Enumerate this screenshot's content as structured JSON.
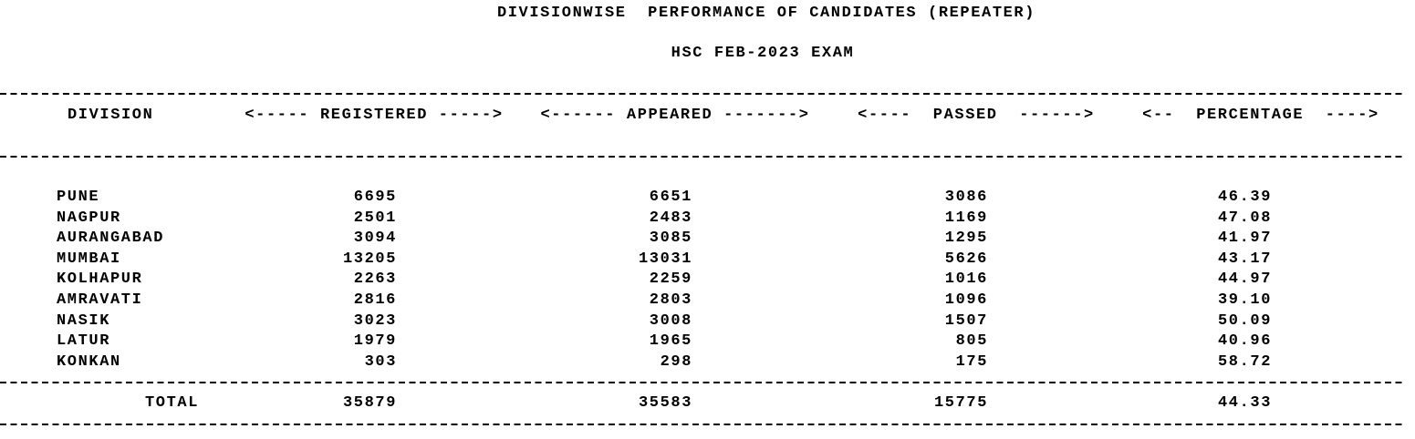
{
  "title": "DIVISIONWISE  PERFORMANCE OF CANDIDATES (REPEATER)",
  "subtitle": "HSC FEB-2023 EXAM",
  "headers": {
    "division": "DIVISION",
    "registered": "<----- REGISTERED ----->",
    "appeared": "<------ APPEARED ------->",
    "passed": "<----  PASSED  ------>",
    "percentage": "<--  PERCENTAGE  ---->"
  },
  "rows": [
    {
      "division": "PUNE",
      "registered": "6695",
      "appeared": "6651",
      "passed": "3086",
      "percentage": "46.39"
    },
    {
      "division": "NAGPUR",
      "registered": "2501",
      "appeared": "2483",
      "passed": "1169",
      "percentage": "47.08"
    },
    {
      "division": "AURANGABAD",
      "registered": "3094",
      "appeared": "3085",
      "passed": "1295",
      "percentage": "41.97"
    },
    {
      "division": "MUMBAI",
      "registered": "13205",
      "appeared": "13031",
      "passed": "5626",
      "percentage": "43.17"
    },
    {
      "division": "KOLHAPUR",
      "registered": "2263",
      "appeared": "2259",
      "passed": "1016",
      "percentage": "44.97"
    },
    {
      "division": "AMRAVATI",
      "registered": "2816",
      "appeared": "2803",
      "passed": "1096",
      "percentage": "39.10"
    },
    {
      "division": "NASIK",
      "registered": "3023",
      "appeared": "3008",
      "passed": "1507",
      "percentage": "50.09"
    },
    {
      "division": "LATUR",
      "registered": "1979",
      "appeared": "1965",
      "passed": "805",
      "percentage": "40.96"
    },
    {
      "division": "KONKAN",
      "registered": "303",
      "appeared": "298",
      "passed": "175",
      "percentage": "58.72"
    }
  ],
  "total": {
    "label": "TOTAL",
    "registered": "35879",
    "appeared": "35583",
    "passed": "15775",
    "percentage": "44.33"
  }
}
